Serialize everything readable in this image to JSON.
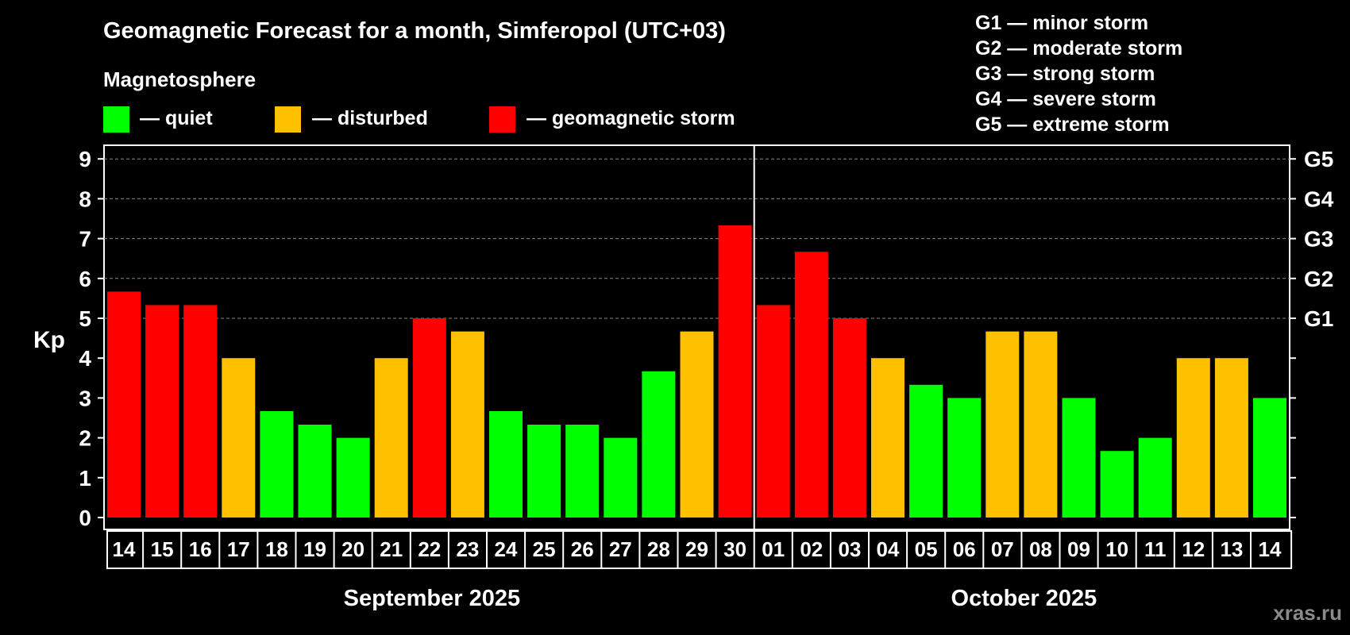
{
  "title": "Geomagnetic Forecast for a month, Simferopol (UTC+03)",
  "legend": {
    "heading": "Magnetosphere",
    "items": [
      {
        "label": "— quiet",
        "color": "#00ff00"
      },
      {
        "label": "— disturbed",
        "color": "#ffc000"
      },
      {
        "label": "— geomagnetic storm",
        "color": "#ff0000"
      }
    ]
  },
  "storm_levels": [
    "G1 — minor storm",
    "G2 — moderate storm",
    "G3 — strong storm",
    "G4 — severe storm",
    "G5 — extreme storm"
  ],
  "watermark": "xras.ru",
  "chart_data": {
    "type": "bar",
    "ylabel": "Kp",
    "ylim": [
      0,
      9
    ],
    "yticks": [
      0,
      1,
      2,
      3,
      4,
      5,
      6,
      7,
      8,
      9
    ],
    "right_ticks": [
      {
        "value": 5,
        "label": "G1"
      },
      {
        "value": 6,
        "label": "G2"
      },
      {
        "value": 7,
        "label": "G3"
      },
      {
        "value": 8,
        "label": "G4"
      },
      {
        "value": 9,
        "label": "G5"
      }
    ],
    "grid": "dashed horizontal at 5, 6, 7, 8, 9",
    "months": [
      {
        "label": "September 2025",
        "days": 17
      },
      {
        "label": "October 2025",
        "days": 14
      }
    ],
    "categories": [
      "14",
      "15",
      "16",
      "17",
      "18",
      "19",
      "20",
      "21",
      "22",
      "23",
      "24",
      "25",
      "26",
      "27",
      "28",
      "29",
      "30",
      "01",
      "02",
      "03",
      "04",
      "05",
      "06",
      "07",
      "08",
      "09",
      "10",
      "11",
      "12",
      "13",
      "14"
    ],
    "values": [
      5.67,
      5.33,
      5.33,
      4.0,
      2.67,
      2.33,
      2.0,
      4.0,
      5.0,
      4.67,
      2.67,
      2.33,
      2.33,
      2.0,
      3.67,
      4.67,
      7.33,
      5.33,
      6.67,
      5.0,
      4.0,
      3.33,
      3.0,
      4.67,
      4.67,
      3.0,
      1.67,
      2.0,
      4.0,
      4.0,
      3.0
    ],
    "colors": {
      "quiet": "#00ff00",
      "disturbed": "#ffc000",
      "storm": "#ff0000"
    }
  }
}
